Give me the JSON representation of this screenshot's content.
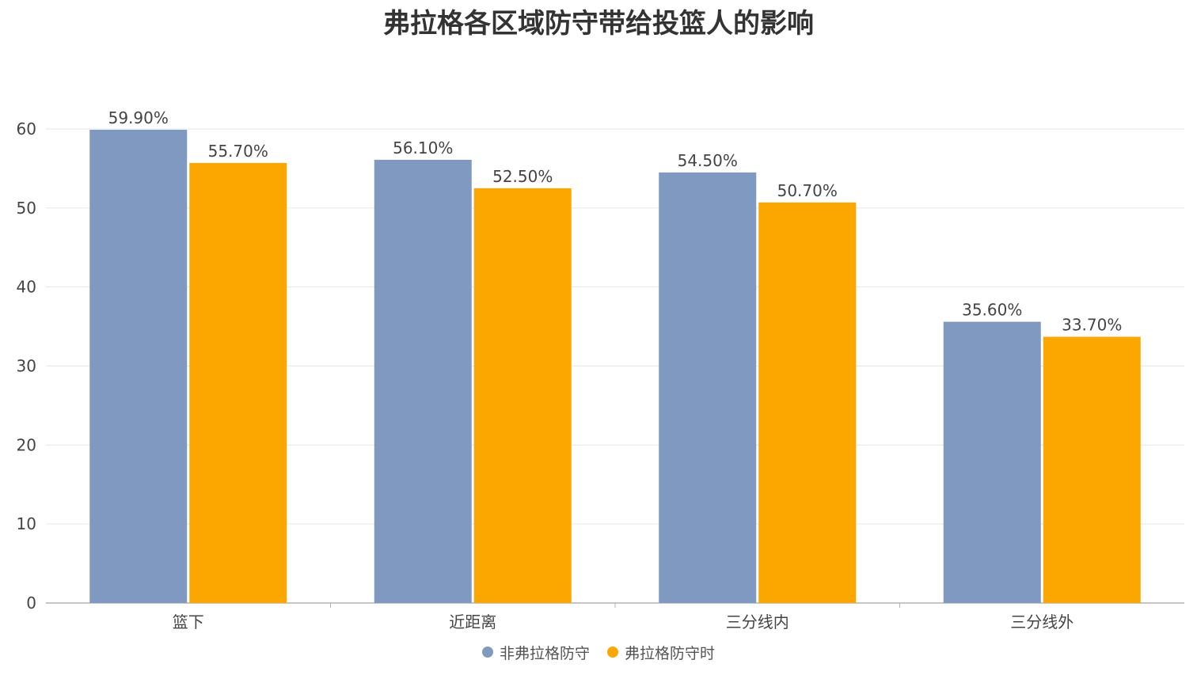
{
  "chart_data": {
    "type": "bar",
    "title": "弗拉格各区域防守带给投篮人的影响",
    "categories": [
      "篮下",
      "近距离",
      "三分线内",
      "三分线外"
    ],
    "series": [
      {
        "name": "非弗拉格防守",
        "color": "#7f99c0",
        "values": [
          59.9,
          56.1,
          54.5,
          35.6
        ],
        "labels": [
          "59.90%",
          "56.10%",
          "54.50%",
          "35.60%"
        ]
      },
      {
        "name": "弗拉格防守时",
        "color": "#fca600",
        "values": [
          55.7,
          52.5,
          50.7,
          33.7
        ],
        "labels": [
          "55.70%",
          "52.50%",
          "50.70%",
          "33.70%"
        ]
      }
    ],
    "ylim": [
      0,
      60
    ],
    "yticks": [
      "0",
      "10",
      "20",
      "30",
      "40",
      "50",
      "60"
    ],
    "grid": true,
    "legend_position": "bottom"
  }
}
